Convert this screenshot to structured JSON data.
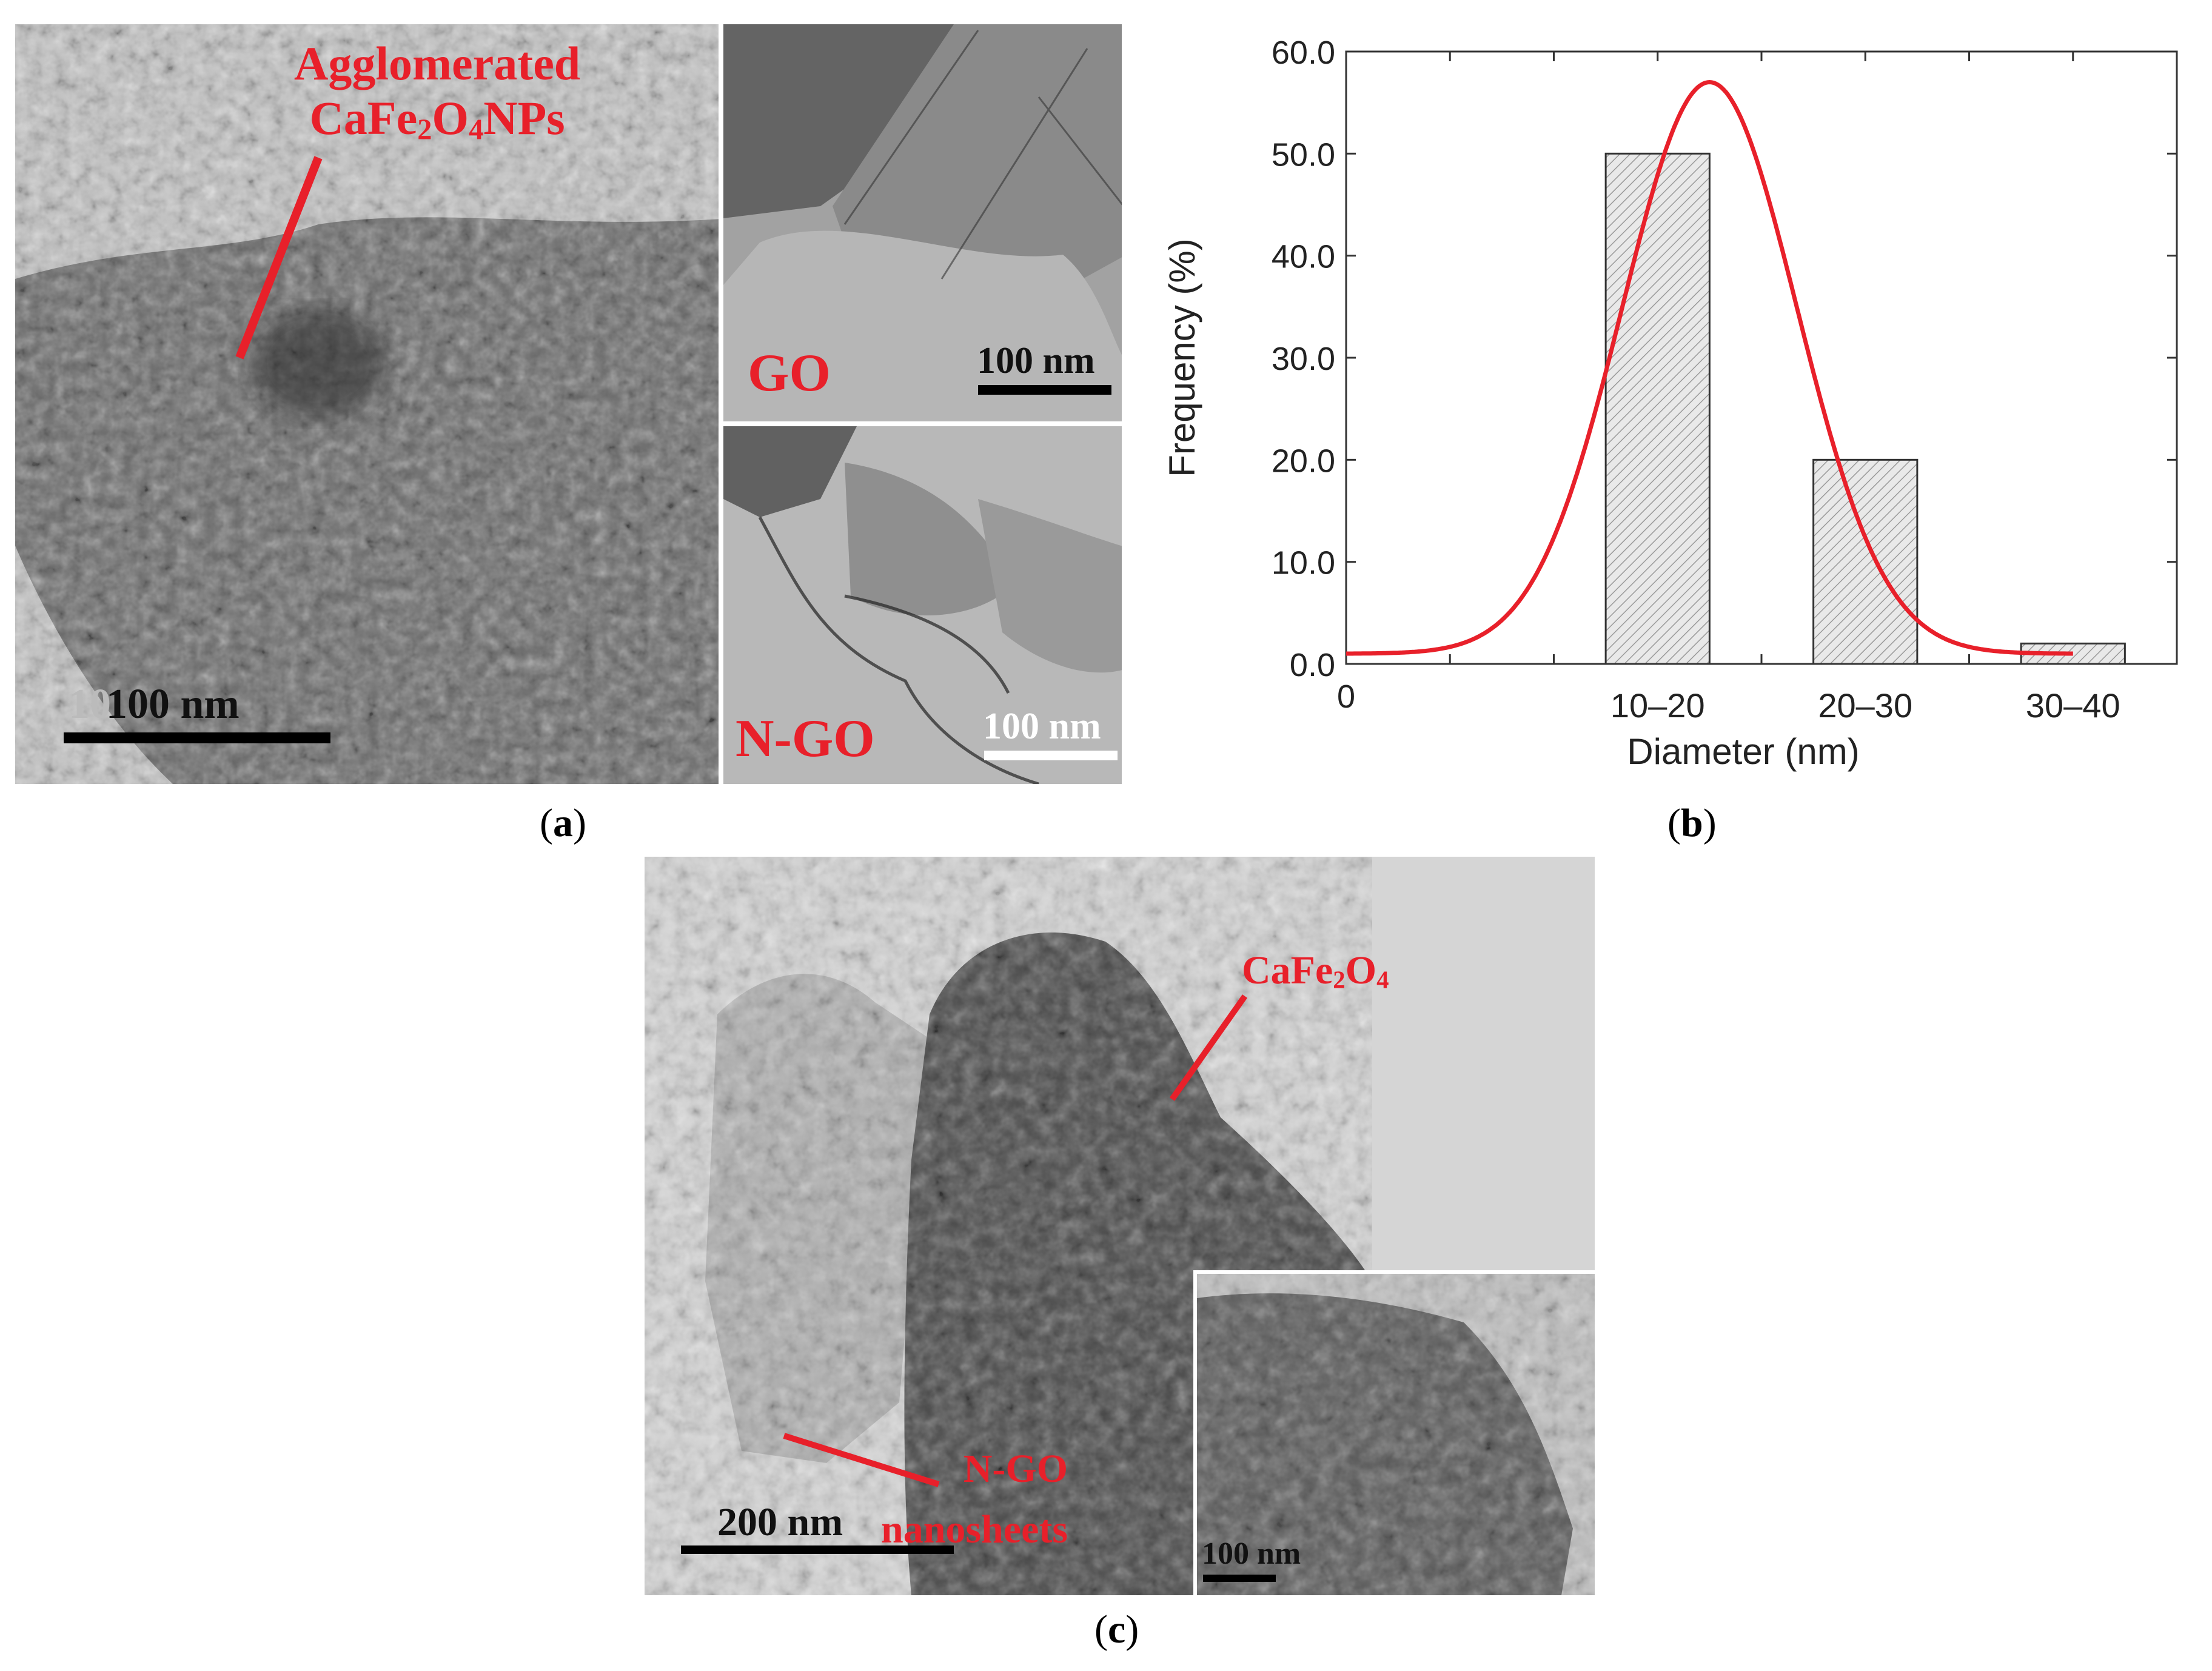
{
  "panel_a": {
    "caption": "a",
    "main_label_line1": "Agglomerated",
    "main_label_line2_prefix": "CaFe",
    "main_label_sub1": "2",
    "main_label_mid": "O",
    "main_label_sub2": "4",
    "main_label_suffix": "NPs",
    "main_scale": "100 nm",
    "main_scale_ghost": "10",
    "inset_go_label": "GO",
    "inset_go_scale": "100 nm",
    "inset_ngo_label": "N-GO",
    "inset_ngo_scale": "100 nm"
  },
  "panel_c": {
    "caption": "c",
    "cafe_prefix": "CaFe",
    "cafe_sub1": "2",
    "cafe_mid": "O",
    "cafe_sub2": "4",
    "ngo_line1": "N-GO",
    "ngo_line2": "nanosheets",
    "main_scale": "200 nm",
    "inset_scale": "100 nm"
  },
  "chart_data": {
    "type": "bar",
    "caption": "b",
    "categories": [
      "10–20",
      "20–30",
      "30–40"
    ],
    "values": [
      50.0,
      20.0,
      2.0
    ],
    "x_tick_zero": "0",
    "xlabel": "Diameter (nm)",
    "ylabel": "Frequency (%)",
    "ylim": [
      0,
      60
    ],
    "yticks": [
      "0.0",
      "10.0",
      "20.0",
      "30.0",
      "40.0",
      "50.0",
      "60.0"
    ],
    "xlim": [
      0,
      40
    ],
    "bar_ranges": [
      [
        10,
        20
      ],
      [
        20,
        30
      ],
      [
        30,
        40
      ]
    ],
    "fit": {
      "type": "gaussian",
      "mu": 17.5,
      "sigma": 4.2,
      "peak": 57,
      "baseline": 1,
      "x_range": [
        0,
        35
      ]
    },
    "colors": {
      "fit": "#e8202a",
      "bar_fill": "#e9e9e9",
      "bar_hatch": "#9a9a9a",
      "bar_edge": "#333333"
    }
  }
}
